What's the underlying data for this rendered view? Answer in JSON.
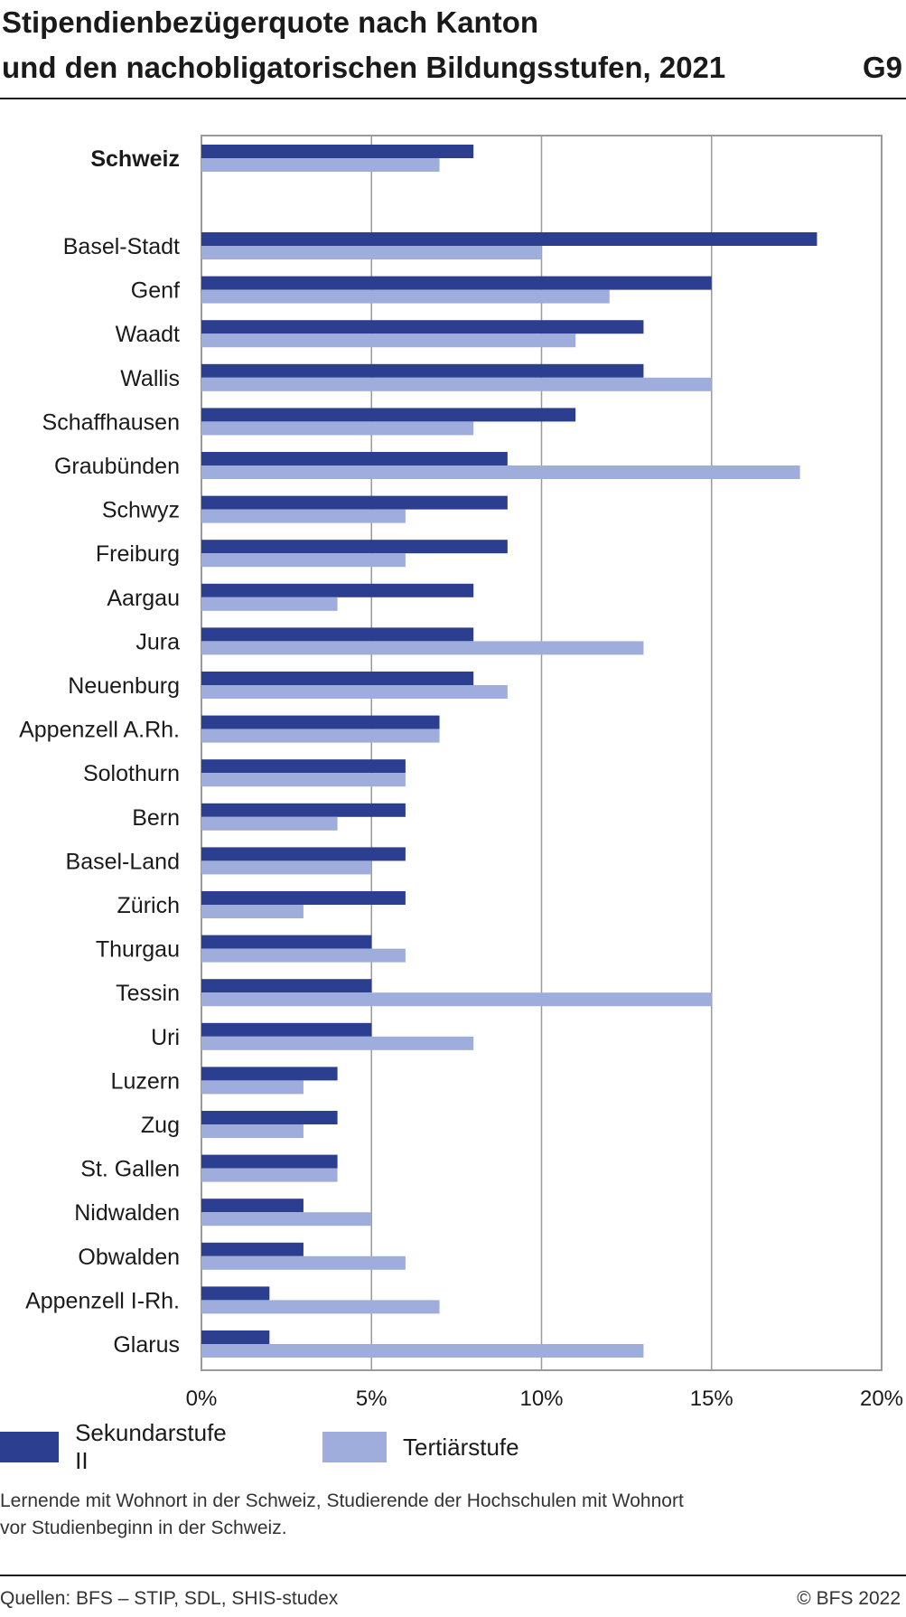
{
  "header": {
    "title_line1": "Stipendienbezügerquote nach Kanton",
    "title_line2": "und den nachobligatorischen Bildungsstufen, 2021",
    "figure_code": "G9"
  },
  "legend": {
    "items": [
      {
        "label": "Sekundarstufe II",
        "color": "#2c3e8f"
      },
      {
        "label": "Tertiärstufe",
        "color": "#9eaddb"
      }
    ]
  },
  "note": {
    "line1": "Lernende mit Wohnort in der Schweiz, Studierende der Hochschulen mit Wohnort",
    "line2": "vor Studienbeginn in der Schweiz."
  },
  "footer": {
    "source": "Quellen: BFS – STIP, SDL, SHIS-studex",
    "copyright": "© BFS 2022"
  },
  "chart_data": {
    "type": "bar",
    "orientation": "horizontal",
    "title": "Stipendienbezügerquote nach Kanton und den nachobligatorischen Bildungsstufen, 2021",
    "categories": [
      "Schweiz",
      "Basel-Stadt",
      "Genf",
      "Waadt",
      "Wallis",
      "Schaffhausen",
      "Graubünden",
      "Schwyz",
      "Freiburg",
      "Aargau",
      "Jura",
      "Neuenburg",
      "Appenzell A.Rh.",
      "Solothurn",
      "Bern",
      "Basel-Land",
      "Zürich",
      "Thurgau",
      "Tessin",
      "Uri",
      "Luzern",
      "Zug",
      "St. Gallen",
      "Nidwalden",
      "Obwalden",
      "Appenzell I-Rh.",
      "Glarus"
    ],
    "highlight_category": "Schweiz",
    "series": [
      {
        "name": "Sekundarstufe II",
        "color": "#2c3e8f",
        "values": [
          8,
          18.1,
          15,
          13,
          13,
          11,
          9,
          9,
          9,
          8,
          8,
          8,
          7,
          6,
          6,
          6,
          6,
          5,
          5,
          5,
          4,
          4,
          4,
          3,
          3,
          2,
          2
        ]
      },
      {
        "name": "Tertiärstufe",
        "color": "#9eaddb",
        "values": [
          7,
          10,
          12,
          11,
          15,
          8,
          17.6,
          6,
          6,
          4,
          13,
          9,
          7,
          6,
          4,
          5,
          3,
          6,
          15,
          8,
          3,
          3,
          4,
          5,
          6,
          7,
          13
        ]
      }
    ],
    "xlim": [
      0,
      20
    ],
    "x_ticks": [
      "0%",
      "5%",
      "10%",
      "15%",
      "20%"
    ],
    "x_tick_values": [
      0,
      5,
      10,
      15,
      20
    ],
    "grid": true,
    "legend_position": "bottom"
  }
}
